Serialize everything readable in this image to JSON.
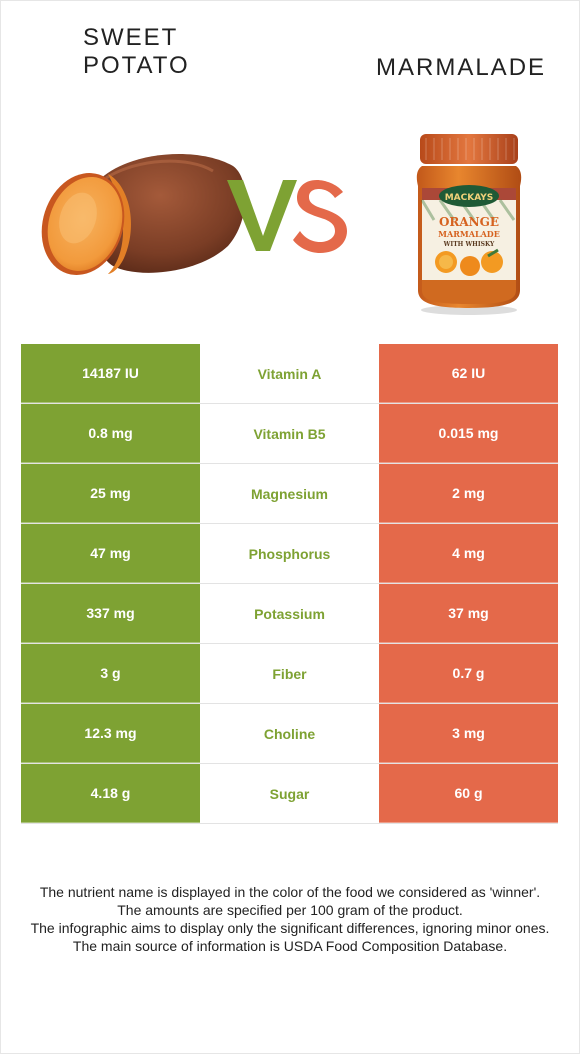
{
  "header": {
    "left_title": "SWEET\nPOTATO",
    "right_title": "MARMALADE",
    "vs_text": "VS"
  },
  "images": {
    "left": "sweet-potato-illustration",
    "right": "marmalade-jar-illustration"
  },
  "jar_label": {
    "brand": "MACKAYS",
    "line1": "ORANGE",
    "line2": "MARMALADE",
    "line3": "WITH WHISKY"
  },
  "colors": {
    "left": "#7ea233",
    "right": "#e4694a",
    "winner_text": "#7ea233"
  },
  "table": {
    "rows": [
      {
        "left": "14187 IU",
        "nutrient": "Vitamin A",
        "right": "62 IU"
      },
      {
        "left": "0.8 mg",
        "nutrient": "Vitamin B5",
        "right": "0.015 mg"
      },
      {
        "left": "25 mg",
        "nutrient": "Magnesium",
        "right": "2 mg"
      },
      {
        "left": "47 mg",
        "nutrient": "Phosphorus",
        "right": "4 mg"
      },
      {
        "left": "337 mg",
        "nutrient": "Potassium",
        "right": "37 mg"
      },
      {
        "left": "3 g",
        "nutrient": "Fiber",
        "right": "0.7 g"
      },
      {
        "left": "12.3 mg",
        "nutrient": "Choline",
        "right": "3 mg"
      },
      {
        "left": "4.18 g",
        "nutrient": "Sugar",
        "right": "60 g"
      }
    ]
  },
  "footnote": {
    "lines": [
      "The nutrient name is displayed in the color of the food we considered as 'winner'.",
      "The amounts are specified per 100 gram of the product.",
      "The infographic aims to display only the significant differences, ignoring minor ones.",
      "The main source of information is USDA Food Composition Database."
    ]
  }
}
